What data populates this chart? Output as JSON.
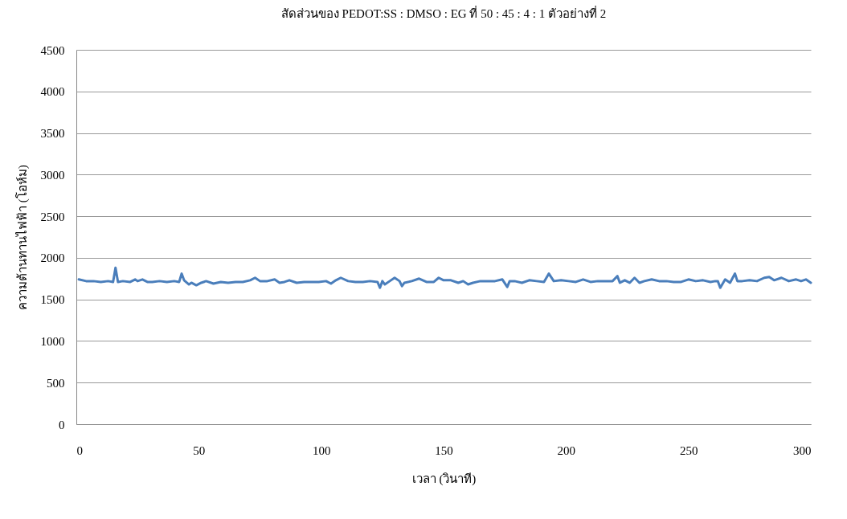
{
  "chart_data": {
    "type": "line",
    "title": "สัดส่วนของ PEDOT:SS : DMSO : EG ที่ 50 : 45 : 4 : 1 ตัวอย่างที่ 2",
    "xlabel": "เวลา (วินาที)",
    "ylabel": "ความต้านทานไฟฟ้า (โอห์ม)",
    "xlim": [
      0,
      300
    ],
    "xticks": [
      0,
      50,
      100,
      150,
      200,
      250,
      300
    ],
    "ylim": [
      0,
      4500
    ],
    "yticks": [
      0,
      500,
      1000,
      1500,
      2000,
      2500,
      3000,
      3500,
      4000,
      4500
    ],
    "grid": "y",
    "legend": false,
    "marker": "none",
    "line_style": "solid",
    "series": [
      {
        "color": "#4a7ebb",
        "x": [
          1,
          4,
          7,
          10,
          13,
          15,
          16,
          17,
          19,
          22,
          24,
          25,
          27,
          29,
          31,
          34,
          37,
          40,
          42,
          43,
          44,
          46,
          47,
          49,
          51,
          53,
          56,
          59,
          62,
          65,
          68,
          71,
          73,
          75,
          78,
          81,
          83,
          85,
          87,
          90,
          93,
          96,
          99,
          102,
          104,
          106,
          108,
          111,
          114,
          117,
          120,
          123,
          124,
          125,
          126,
          128,
          130,
          132,
          133,
          134,
          137,
          140,
          143,
          146,
          148,
          150,
          153,
          156,
          158,
          160,
          162,
          165,
          168,
          171,
          174,
          176,
          177,
          179,
          182,
          185,
          188,
          191,
          193,
          195,
          198,
          201,
          204,
          207,
          210,
          213,
          216,
          219,
          221,
          222,
          224,
          226,
          228,
          230,
          232,
          235,
          238,
          241,
          244,
          247,
          250,
          253,
          256,
          259,
          261,
          262,
          263,
          265,
          267,
          269,
          270,
          272,
          275,
          278,
          281,
          283,
          285,
          288,
          291,
          294,
          296,
          298,
          300
        ],
        "values": [
          1740,
          1720,
          1720,
          1710,
          1720,
          1710,
          1880,
          1710,
          1720,
          1710,
          1740,
          1720,
          1740,
          1710,
          1710,
          1720,
          1710,
          1720,
          1710,
          1810,
          1730,
          1680,
          1700,
          1670,
          1700,
          1720,
          1690,
          1710,
          1700,
          1710,
          1710,
          1730,
          1760,
          1720,
          1720,
          1740,
          1700,
          1710,
          1730,
          1700,
          1710,
          1710,
          1710,
          1720,
          1690,
          1730,
          1760,
          1720,
          1710,
          1710,
          1720,
          1710,
          1640,
          1720,
          1680,
          1720,
          1760,
          1720,
          1660,
          1700,
          1720,
          1750,
          1710,
          1710,
          1760,
          1730,
          1730,
          1700,
          1720,
          1680,
          1700,
          1720,
          1720,
          1720,
          1740,
          1650,
          1720,
          1720,
          1700,
          1730,
          1720,
          1710,
          1810,
          1720,
          1730,
          1720,
          1710,
          1740,
          1710,
          1720,
          1720,
          1720,
          1780,
          1700,
          1730,
          1700,
          1760,
          1700,
          1720,
          1740,
          1720,
          1720,
          1710,
          1710,
          1740,
          1720,
          1730,
          1710,
          1720,
          1720,
          1640,
          1740,
          1700,
          1810,
          1720,
          1720,
          1730,
          1720,
          1760,
          1770,
          1730,
          1760,
          1720,
          1740,
          1720,
          1740,
          1700
        ]
      }
    ]
  }
}
